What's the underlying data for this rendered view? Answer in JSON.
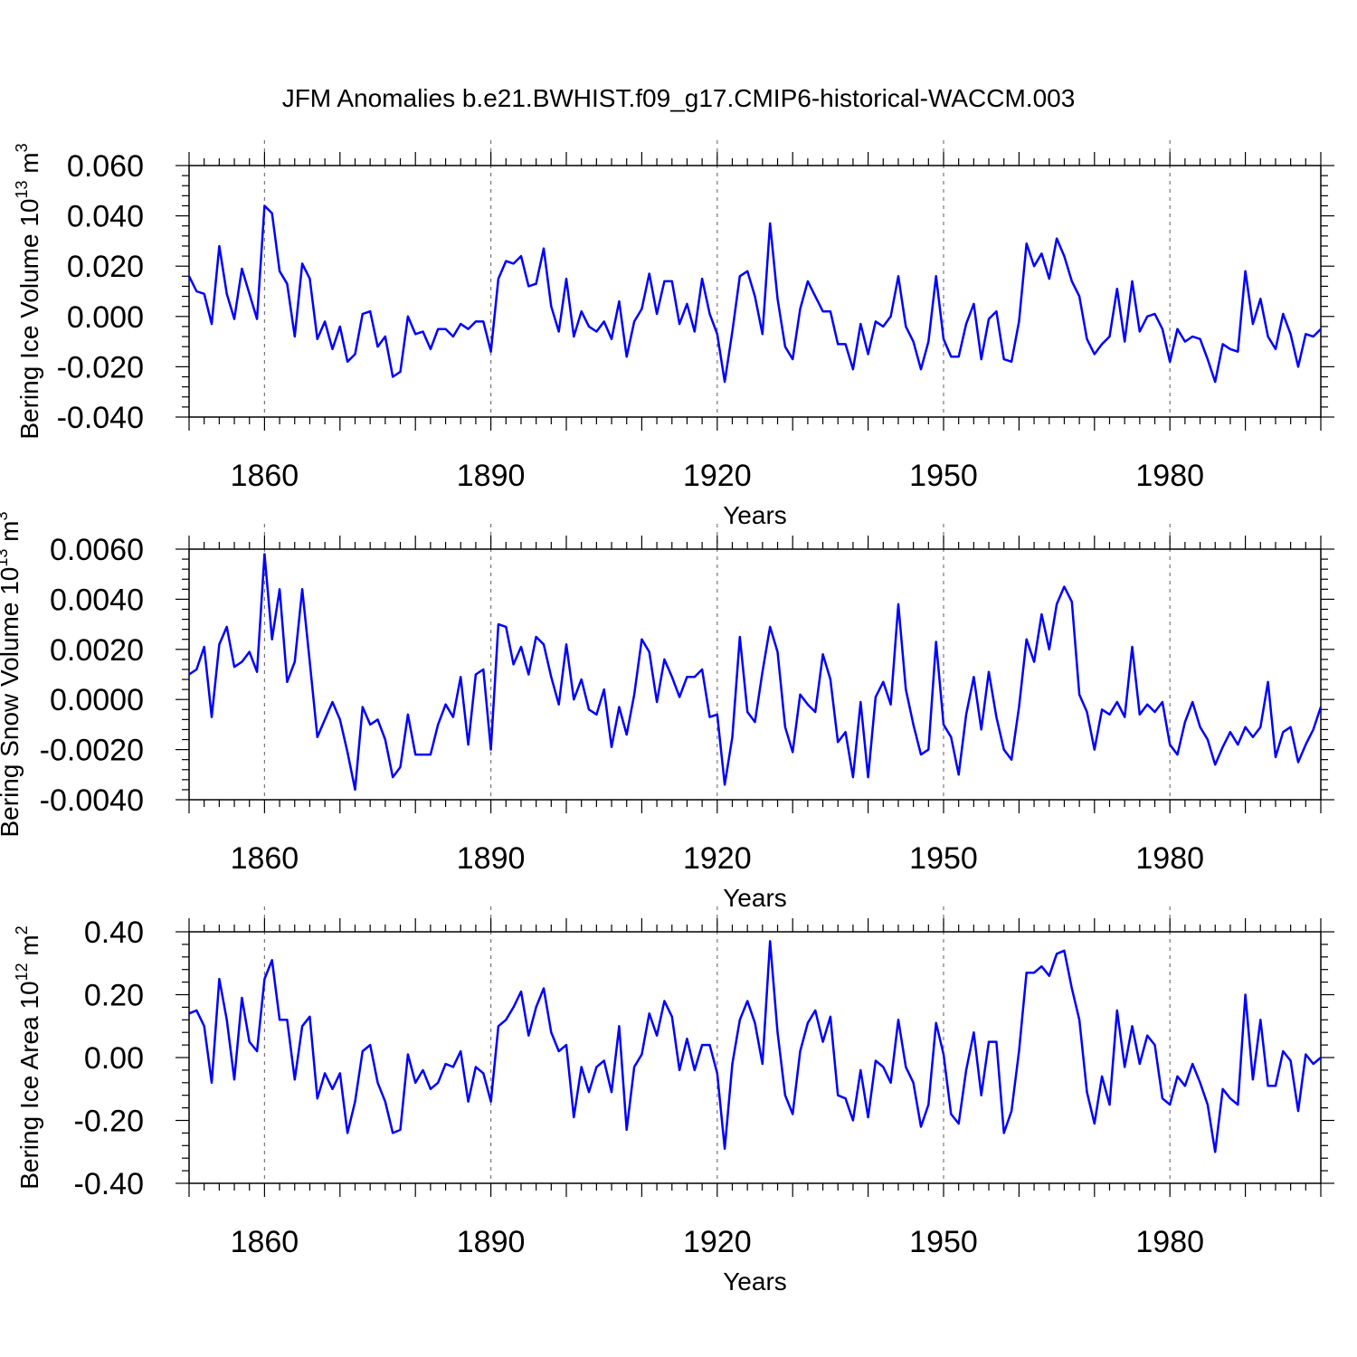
{
  "title": "JFM Anomalies b.e21.BWHIST.f09_g17.CMIP6-historical-WACCM.003",
  "colors": {
    "line": "#0000ff",
    "grid": "#777777",
    "axis": "#000000"
  },
  "chart_data": [
    {
      "type": "line",
      "ylabel_main": "Bering Ice Volume 10",
      "ylabel_exp": "13",
      "ylabel_unit": "m",
      "ylabel_unit_exp": "3",
      "xlabel": "Years",
      "xlim": [
        1850,
        2000
      ],
      "ylim": [
        -0.04,
        0.06
      ],
      "xticks": [
        "1860",
        "1890",
        "1920",
        "1950",
        "1980"
      ],
      "yticks": [
        "0.060",
        "0.040",
        "0.020",
        "0.000",
        "-0.020",
        "-0.040"
      ],
      "x_start": 1850,
      "values": [
        0.016,
        0.01,
        0.009,
        -0.003,
        0.028,
        0.009,
        -0.001,
        0.019,
        0.009,
        -0.001,
        0.044,
        0.041,
        0.018,
        0.013,
        -0.008,
        0.021,
        0.015,
        -0.009,
        -0.002,
        -0.013,
        -0.004,
        -0.018,
        -0.015,
        0.001,
        0.002,
        -0.012,
        -0.008,
        -0.024,
        -0.022,
        0.0,
        -0.007,
        -0.006,
        -0.013,
        -0.005,
        -0.005,
        -0.008,
        -0.003,
        -0.005,
        -0.002,
        -0.002,
        -0.014,
        0.015,
        0.022,
        0.021,
        0.024,
        0.012,
        0.013,
        0.027,
        0.004,
        -0.006,
        0.015,
        -0.008,
        0.002,
        -0.004,
        -0.006,
        -0.002,
        -0.009,
        0.006,
        -0.016,
        -0.002,
        0.003,
        0.017,
        0.001,
        0.014,
        0.014,
        -0.003,
        0.005,
        -0.006,
        0.015,
        0.001,
        -0.007,
        -0.026,
        -0.006,
        0.016,
        0.018,
        0.008,
        -0.007,
        0.037,
        0.007,
        -0.012,
        -0.017,
        0.003,
        0.014,
        0.008,
        0.002,
        0.002,
        -0.011,
        -0.011,
        -0.021,
        -0.003,
        -0.015,
        -0.002,
        -0.004,
        0.0,
        0.016,
        -0.004,
        -0.01,
        -0.021,
        -0.01,
        0.016,
        -0.009,
        -0.016,
        -0.016,
        -0.003,
        0.005,
        -0.017,
        -0.001,
        0.002,
        -0.017,
        -0.018,
        -0.002,
        0.029,
        0.02,
        0.025,
        0.015,
        0.031,
        0.024,
        0.014,
        0.008,
        -0.009,
        -0.015,
        -0.011,
        -0.008,
        0.011,
        -0.01,
        0.014,
        -0.006,
        0.0,
        0.001,
        -0.005,
        -0.018,
        -0.005,
        -0.01,
        -0.008,
        -0.009,
        -0.017,
        -0.026,
        -0.011,
        -0.013,
        -0.014,
        0.018,
        -0.003,
        0.007,
        -0.008,
        -0.013,
        0.001,
        -0.007,
        -0.02,
        -0.007,
        -0.008,
        -0.005
      ]
    },
    {
      "type": "line",
      "ylabel_main": "Bering Snow Volume 10",
      "ylabel_exp": "13",
      "ylabel_unit": "m",
      "ylabel_unit_exp": "3",
      "xlabel": "Years",
      "xlim": [
        1850,
        2000
      ],
      "ylim": [
        -0.004,
        0.006
      ],
      "xticks": [
        "1860",
        "1890",
        "1920",
        "1950",
        "1980"
      ],
      "yticks": [
        "0.0060",
        "0.0040",
        "0.0020",
        "0.0000",
        "-0.0020",
        "-0.0040"
      ],
      "x_start": 1850,
      "values": [
        0.001,
        0.0012,
        0.0021,
        -0.0007,
        0.0022,
        0.0029,
        0.0013,
        0.0015,
        0.0019,
        0.0011,
        0.0058,
        0.0024,
        0.0044,
        0.0007,
        0.0015,
        0.0044,
        0.0015,
        -0.0015,
        -0.0008,
        -0.0001,
        -0.0008,
        -0.0021,
        -0.0036,
        -0.0003,
        -0.001,
        -0.0008,
        -0.0016,
        -0.0031,
        -0.0027,
        -0.0006,
        -0.0022,
        -0.0022,
        -0.0022,
        -0.001,
        -0.0002,
        -0.0007,
        0.0009,
        -0.0018,
        0.001,
        0.0012,
        -0.002,
        0.003,
        0.0029,
        0.0014,
        0.0021,
        0.001,
        0.0025,
        0.0022,
        0.0009,
        -0.0002,
        0.0022,
        0.0,
        0.0008,
        -0.0004,
        -0.0006,
        0.0004,
        -0.0019,
        -0.0003,
        -0.0014,
        0.0002,
        0.0024,
        0.0019,
        -0.0001,
        0.0016,
        0.0009,
        0.0001,
        0.0009,
        0.0009,
        0.0012,
        -0.0007,
        -0.0006,
        -0.0034,
        -0.0015,
        0.0025,
        -0.0005,
        -0.0009,
        0.0011,
        0.0029,
        0.0019,
        -0.0011,
        -0.0021,
        0.0002,
        -0.0002,
        -0.0005,
        0.0018,
        0.0008,
        -0.0017,
        -0.0013,
        -0.0031,
        -0.0001,
        -0.0031,
        0.0001,
        0.0007,
        -0.0002,
        0.0038,
        0.0004,
        -0.001,
        -0.0022,
        -0.002,
        0.0023,
        -0.001,
        -0.0015,
        -0.003,
        -0.0006,
        0.0009,
        -0.0012,
        0.0011,
        -0.0007,
        -0.002,
        -0.0024,
        -0.0003,
        0.0024,
        0.0015,
        0.0034,
        0.002,
        0.0038,
        0.0045,
        0.0039,
        0.0002,
        -0.0005,
        -0.002,
        -0.0004,
        -0.0006,
        -0.0001,
        -0.0007,
        0.0021,
        -0.0006,
        -0.0002,
        -0.0005,
        -0.0001,
        -0.0018,
        -0.0022,
        -0.0009,
        -0.0001,
        -0.0011,
        -0.0016,
        -0.0026,
        -0.0019,
        -0.0013,
        -0.0018,
        -0.0011,
        -0.0015,
        -0.0011,
        0.0007,
        -0.0023,
        -0.0013,
        -0.0011,
        -0.0025,
        -0.0018,
        -0.0012,
        -0.0003
      ]
    },
    {
      "type": "line",
      "ylabel_main": "Bering Ice Area 10",
      "ylabel_exp": "12",
      "ylabel_unit": "m",
      "ylabel_unit_exp": "2",
      "xlabel": "Years",
      "xlim": [
        1850,
        2000
      ],
      "ylim": [
        -0.4,
        0.4
      ],
      "xticks": [
        "1860",
        "1890",
        "1920",
        "1950",
        "1980"
      ],
      "yticks": [
        "0.40",
        "0.20",
        "0.00",
        "-0.20",
        "-0.40"
      ],
      "x_start": 1850,
      "values": [
        0.14,
        0.15,
        0.1,
        -0.08,
        0.25,
        0.12,
        -0.07,
        0.19,
        0.05,
        0.02,
        0.25,
        0.31,
        0.12,
        0.12,
        -0.07,
        0.1,
        0.13,
        -0.13,
        -0.05,
        -0.1,
        -0.05,
        -0.24,
        -0.14,
        0.02,
        0.04,
        -0.08,
        -0.14,
        -0.24,
        -0.23,
        0.01,
        -0.08,
        -0.04,
        -0.1,
        -0.08,
        -0.02,
        -0.03,
        0.02,
        -0.14,
        -0.03,
        -0.05,
        -0.14,
        0.1,
        0.12,
        0.16,
        0.21,
        0.07,
        0.16,
        0.22,
        0.08,
        0.02,
        0.04,
        -0.19,
        -0.03,
        -0.11,
        -0.03,
        -0.01,
        -0.11,
        0.1,
        -0.23,
        -0.03,
        0.01,
        0.14,
        0.07,
        0.18,
        0.13,
        -0.04,
        0.06,
        -0.04,
        0.04,
        0.04,
        -0.05,
        -0.29,
        -0.02,
        0.12,
        0.18,
        0.11,
        -0.02,
        0.37,
        0.08,
        -0.12,
        -0.18,
        0.02,
        0.11,
        0.15,
        0.05,
        0.13,
        -0.12,
        -0.13,
        -0.2,
        -0.04,
        -0.19,
        -0.01,
        -0.03,
        -0.08,
        0.12,
        -0.03,
        -0.08,
        -0.22,
        -0.15,
        0.11,
        0.01,
        -0.18,
        -0.21,
        -0.04,
        0.08,
        -0.12,
        0.05,
        0.05,
        -0.24,
        -0.17,
        0.02,
        0.27,
        0.27,
        0.29,
        0.26,
        0.33,
        0.34,
        0.22,
        0.12,
        -0.11,
        -0.21,
        -0.06,
        -0.15,
        0.15,
        -0.03,
        0.1,
        -0.02,
        0.07,
        0.04,
        -0.13,
        -0.15,
        -0.06,
        -0.09,
        -0.02,
        -0.08,
        -0.15,
        -0.3,
        -0.1,
        -0.13,
        -0.15,
        0.2,
        -0.07,
        0.12,
        -0.09,
        -0.09,
        0.02,
        -0.01,
        -0.17,
        0.01,
        -0.02,
        0.0
      ]
    }
  ]
}
